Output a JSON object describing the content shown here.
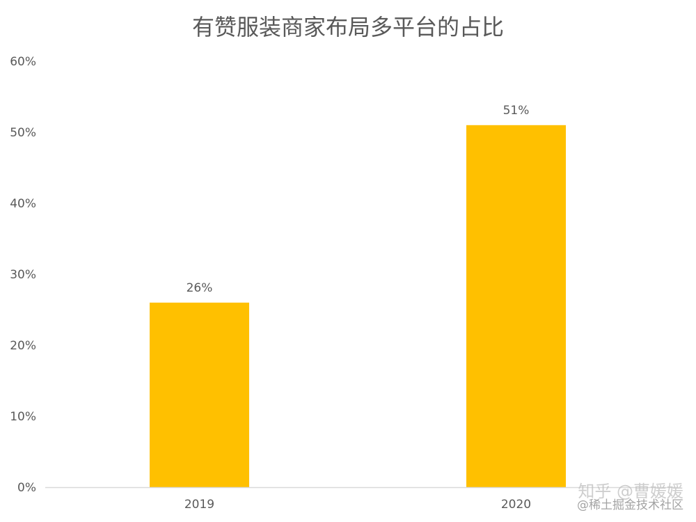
{
  "chart_data": {
    "type": "bar",
    "title": "有赞服装商家布局多平台的占比",
    "categories": [
      "2019",
      "2020"
    ],
    "values": [
      26,
      51
    ],
    "value_labels": [
      "26%",
      "51%"
    ],
    "yticks": [
      "0%",
      "10%",
      "20%",
      "30%",
      "40%",
      "50%",
      "60%"
    ],
    "ylim": [
      0,
      60
    ],
    "xlabel": "",
    "ylabel": "",
    "grid": false,
    "bar_color": "#FFC000",
    "axis_color": "#D9D9D9",
    "text_color": "#595959"
  },
  "watermark": {
    "main": "知乎 @曹媛媛",
    "sub": "@稀土掘金技术社区"
  }
}
